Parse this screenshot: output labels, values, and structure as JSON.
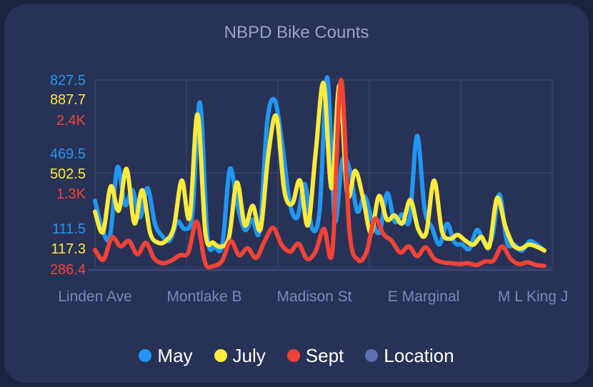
{
  "chart_data": {
    "type": "line",
    "title": "NBPD Bike Counts",
    "xlabel": "",
    "ylabel": "",
    "x_tick_labels": [
      "Linden Ave",
      "Montlake B",
      "Madison St",
      "E Marginal",
      "M L King J"
    ],
    "y_axes": [
      {
        "series": "May",
        "color": "#2196f3",
        "ticks": [
          "111.5",
          "469.5",
          "827.5"
        ],
        "ylim": [
          -67.5,
          827.5
        ]
      },
      {
        "series": "July",
        "color": "#ffeb3b",
        "ticks": [
          "117.3",
          "502.5",
          "887.7"
        ],
        "ylim": [
          -75.3,
          887.7
        ]
      },
      {
        "series": "Sept",
        "color": "#f44336",
        "ticks": [
          "286.4",
          "1.3K",
          "2.4K"
        ],
        "ylim": [
          286.4,
          2400
        ]
      }
    ],
    "grid": true,
    "legend_position": "bottom",
    "series": [
      {
        "name": "May",
        "color": "#2196f3",
        "values": [
          250,
          110,
          80,
          410,
          230,
          300,
          170,
          310,
          140,
          80,
          60,
          150,
          115,
          190,
          720,
          80,
          30,
          40,
          400,
          230,
          110,
          160,
          110,
          630,
          730,
          520,
          240,
          170,
          330,
          115,
          210,
          840,
          160,
          440,
          400,
          200,
          270,
          155,
          100,
          285,
          150,
          185,
          160,
          560,
          210,
          120,
          40,
          140,
          50,
          40,
          20,
          110,
          50,
          70,
          280,
          50,
          40,
          10,
          55,
          40,
          10
        ]
      },
      {
        "name": "July",
        "color": "#ffeb3b",
        "values": [
          210,
          105,
          340,
          215,
          430,
          150,
          320,
          100,
          50,
          60,
          130,
          370,
          180,
          710,
          100,
          50,
          30,
          80,
          360,
          140,
          240,
          120,
          510,
          700,
          320,
          250,
          370,
          140,
          520,
          870,
          330,
          860,
          300,
          420,
          280,
          100,
          290,
          170,
          190,
          150,
          270,
          120,
          100,
          370,
          110,
          70,
          90,
          60,
          40,
          80,
          30,
          280,
          140,
          40,
          20,
          40,
          30,
          10
        ]
      },
      {
        "name": "Sept",
        "color": "#f44336",
        "values": [
          480,
          370,
          620,
          520,
          580,
          430,
          560,
          380,
          330,
          360,
          420,
          450,
          800,
          330,
          300,
          360,
          580,
          420,
          500,
          390,
          580,
          730,
          540,
          460,
          550,
          380,
          460,
          720,
          470,
          2400,
          700,
          370,
          450,
          830,
          660,
          580,
          450,
          520,
          410,
          510,
          380,
          340,
          330,
          320,
          330,
          310,
          350,
          360,
          520,
          380,
          320,
          340,
          310,
          300
        ]
      },
      {
        "name": "Location",
        "color": "#5c6fb1",
        "values": []
      }
    ]
  }
}
